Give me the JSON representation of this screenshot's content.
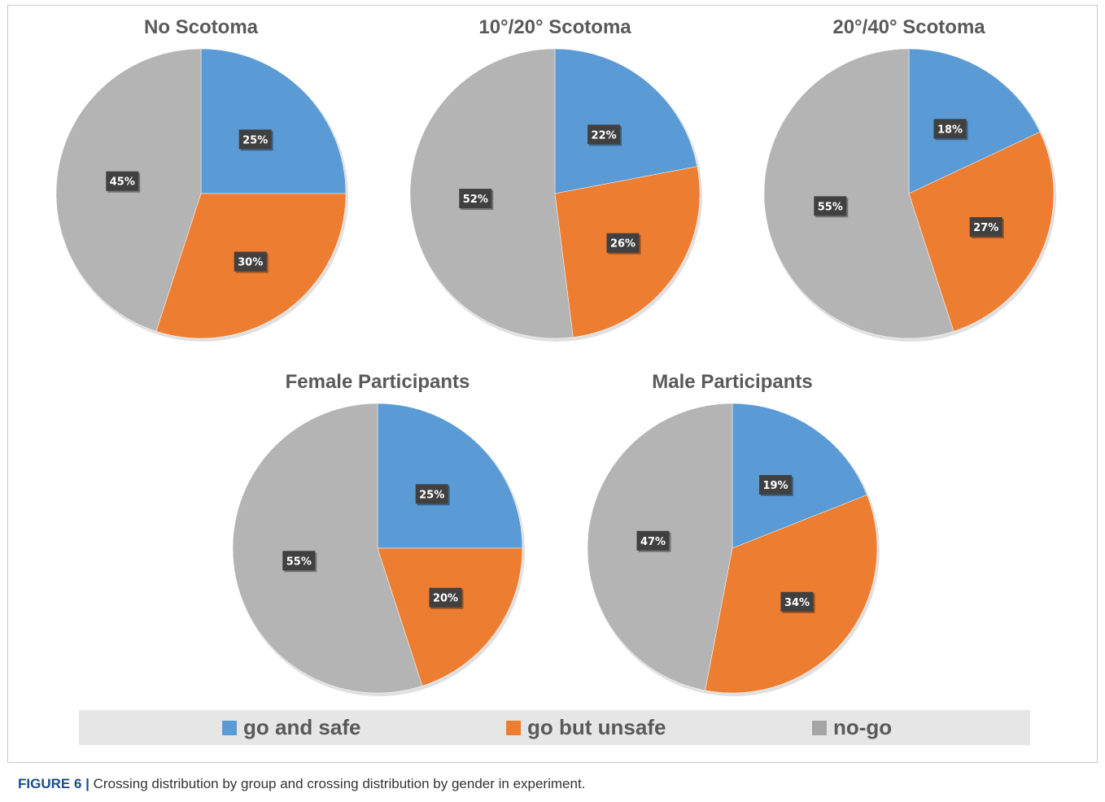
{
  "chart_data": [
    {
      "type": "pie",
      "title": "No Scotoma",
      "labels": [
        "go and safe",
        "go but unsafe",
        "no-go"
      ],
      "values": [
        25,
        30,
        45
      ],
      "data_labels": [
        "25%",
        "30%",
        "45%"
      ]
    },
    {
      "type": "pie",
      "title": "10°/20° Scotoma",
      "labels": [
        "go and safe",
        "go but unsafe",
        "no-go"
      ],
      "values": [
        22,
        26,
        52
      ],
      "data_labels": [
        "22%",
        "26%",
        "52%"
      ]
    },
    {
      "type": "pie",
      "title": "20°/40° Scotoma",
      "labels": [
        "go and safe",
        "go but unsafe",
        "no-go"
      ],
      "values": [
        18,
        27,
        55
      ],
      "data_labels": [
        "18%",
        "27%",
        "55%"
      ]
    },
    {
      "type": "pie",
      "title": "Female Participants",
      "labels": [
        "go and safe",
        "go but unsafe",
        "no-go"
      ],
      "values": [
        25,
        20,
        55
      ],
      "data_labels": [
        "25%",
        "20%",
        "55%"
      ]
    },
    {
      "type": "pie",
      "title": "Male Participants",
      "labels": [
        "go and safe",
        "go but unsafe",
        "no-go"
      ],
      "values": [
        19,
        34,
        47
      ],
      "data_labels": [
        "19%",
        "34%",
        "47%"
      ]
    }
  ],
  "legend": {
    "placement": "bottom",
    "items": [
      {
        "label": "go and safe",
        "color": "#5b9bd5"
      },
      {
        "label": "go but unsafe",
        "color": "#ed7d31"
      },
      {
        "label": "no-go",
        "color": "#a5a5a5"
      }
    ]
  },
  "slice_colors": [
    "#5b9bd5",
    "#ed7d31",
    "#b4b4b4"
  ],
  "caption": {
    "label": "FIGURE 6 |",
    "text": " Crossing distribution by group and crossing distribution by gender in experiment."
  }
}
